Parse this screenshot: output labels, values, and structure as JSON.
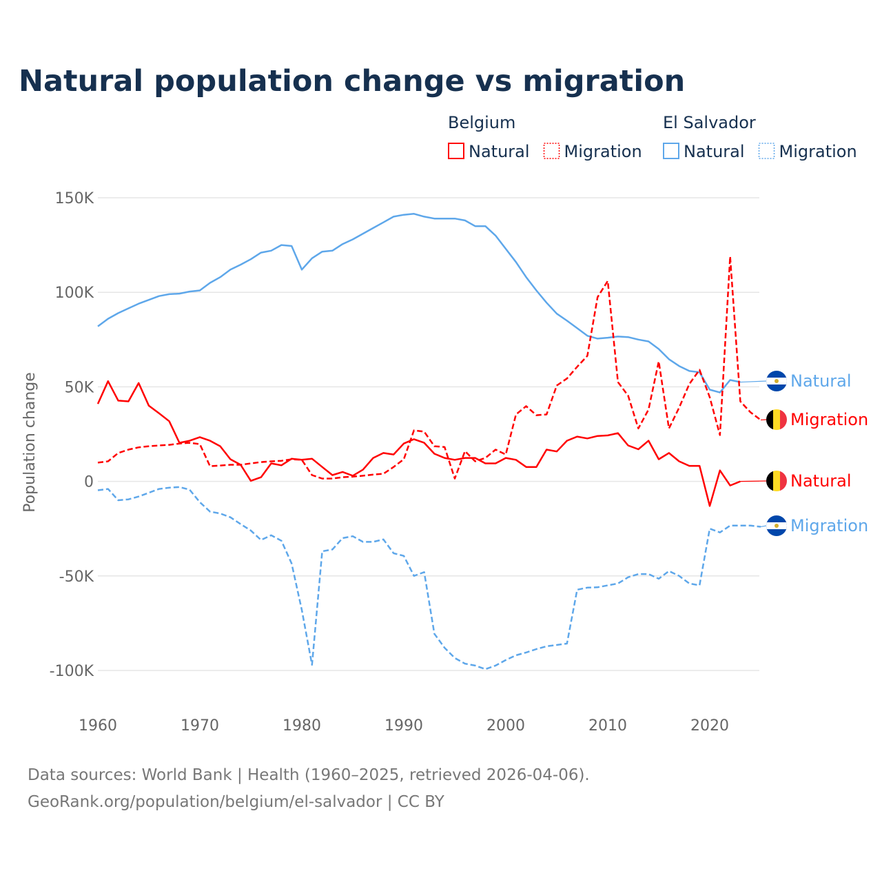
{
  "chart_data": {
    "type": "line",
    "title": "Natural population change vs migration",
    "ylabel": "Population change",
    "xlabel": "",
    "xlim": [
      1960,
      2025
    ],
    "ylim": [
      -100000,
      150000
    ],
    "x_ticks": [
      "1960",
      "1970",
      "1980",
      "1990",
      "2000",
      "2010",
      "2020"
    ],
    "y_ticks": [
      {
        "v": 150000,
        "label": "150K"
      },
      {
        "v": 100000,
        "label": "100K"
      },
      {
        "v": 50000,
        "label": "50K"
      },
      {
        "v": 0,
        "label": "0"
      },
      {
        "v": -50000,
        "label": "-50K"
      },
      {
        "v": -100000,
        "label": "-100K"
      }
    ],
    "grid": true,
    "legend_placement": "top-right",
    "legend_groups": [
      {
        "country": "Belgium",
        "items": [
          "Natural",
          "Migration"
        ]
      },
      {
        "country": "El Salvador",
        "items": [
          "Natural",
          "Migration"
        ]
      }
    ],
    "start_year": 1960,
    "series": [
      {
        "name": "El Salvador Natural",
        "country": "El Salvador",
        "kind": "Natural",
        "color": "#5ea7ea",
        "dashed": false,
        "end_label": "Natural",
        "values": [
          82,
          86,
          89,
          91.5,
          94,
          96,
          98,
          99,
          99.3,
          100.4,
          101,
          105,
          108,
          112,
          114.6,
          117.5,
          121,
          122,
          125,
          124.5,
          112,
          118,
          121.5,
          122,
          125.5,
          128,
          131,
          134,
          137,
          140,
          141,
          141.5,
          140,
          139,
          139,
          139,
          138,
          135,
          135,
          130,
          123,
          116,
          108,
          101,
          94.5,
          88.7,
          85,
          81,
          77,
          75.5,
          76,
          76.6,
          76.3,
          75,
          74,
          70,
          64.6,
          61,
          58.4,
          57.7,
          48.5,
          47,
          53.6,
          52.5,
          null,
          null
        ]
      },
      {
        "name": "Belgium Migration",
        "country": "Belgium",
        "kind": "Migration",
        "color": "#ff0000",
        "dashed": true,
        "end_label": "Migration",
        "values": [
          9.9,
          10.6,
          15,
          16.8,
          18,
          18.6,
          19,
          19.3,
          20,
          20.4,
          19.7,
          8,
          8.4,
          8.8,
          8.8,
          9.5,
          10.2,
          10.6,
          10.9,
          11.7,
          11.4,
          3.3,
          1.5,
          1.5,
          2.2,
          2.5,
          3,
          3.6,
          4,
          7.6,
          11.7,
          27,
          26.3,
          18.6,
          18.2,
          1.5,
          16,
          10.6,
          12.4,
          16.8,
          14.2,
          35.4,
          39.8,
          35,
          35.4,
          50.7,
          54.4,
          60.6,
          66.4,
          97.4,
          106,
          52.5,
          45.3,
          28,
          38,
          63.5,
          28,
          39,
          51.5,
          59,
          44.5,
          24.5,
          119,
          42.3,
          36.5,
          32.5
        ]
      },
      {
        "name": "Belgium Natural",
        "country": "Belgium",
        "kind": "Natural",
        "color": "#ff0000",
        "dashed": false,
        "end_label": "Natural",
        "values": [
          41,
          53,
          42.7,
          42.3,
          52,
          40,
          36,
          31.8,
          20.4,
          21.5,
          23.4,
          21.5,
          18.6,
          11.7,
          8.8,
          0.3,
          2.2,
          9.5,
          8.5,
          12,
          11.4,
          12,
          7.6,
          3.3,
          5,
          3,
          6.2,
          12.4,
          15,
          14.2,
          20,
          22.3,
          20.4,
          14.6,
          12.4,
          11.4,
          12.4,
          12.4,
          9.5,
          9.5,
          12.4,
          11.4,
          7.6,
          7.6,
          16.8,
          15.8,
          21.5,
          23.7,
          22.7,
          24,
          24.3,
          25.5,
          19,
          17,
          21.5,
          11.7,
          15,
          10.6,
          8.2,
          8.2,
          -13,
          5.8,
          -2.2,
          0,
          null,
          null
        ]
      },
      {
        "name": "El Salvador Migration",
        "country": "El Salvador",
        "kind": "Migration",
        "color": "#5ea7ea",
        "dashed": true,
        "end_label": "Migration",
        "values": [
          -4.7,
          -4,
          -10,
          -9.5,
          -8,
          -6,
          -4,
          -3.3,
          -3,
          -4.4,
          -11,
          -16,
          -17,
          -19,
          -22.6,
          -26,
          -31,
          -28.5,
          -31.4,
          -43.4,
          -68,
          -97,
          -37,
          -36,
          -30,
          -29,
          -32,
          -32,
          -30.7,
          -38,
          -39.4,
          -50,
          -48,
          -80.6,
          -88,
          -93.4,
          -96.4,
          -97.4,
          -99.3,
          -97.4,
          -94.5,
          -92,
          -90.5,
          -88.7,
          -87.2,
          -86.5,
          -85.8,
          -57.3,
          -56.2,
          -56,
          -55,
          -54,
          -50.7,
          -49,
          -49,
          -51.5,
          -47.4,
          -50,
          -54,
          -55,
          -25,
          -27,
          -23.4,
          -23.4,
          -23.4,
          -24
        ]
      }
    ],
    "value_unit": "thousands"
  },
  "footer": {
    "line1": "Data sources: World Bank | Health (1960–2025, retrieved 2026-04-06).",
    "line2": "GeoRank.org/population/belgium/el-salvador | CC BY"
  }
}
